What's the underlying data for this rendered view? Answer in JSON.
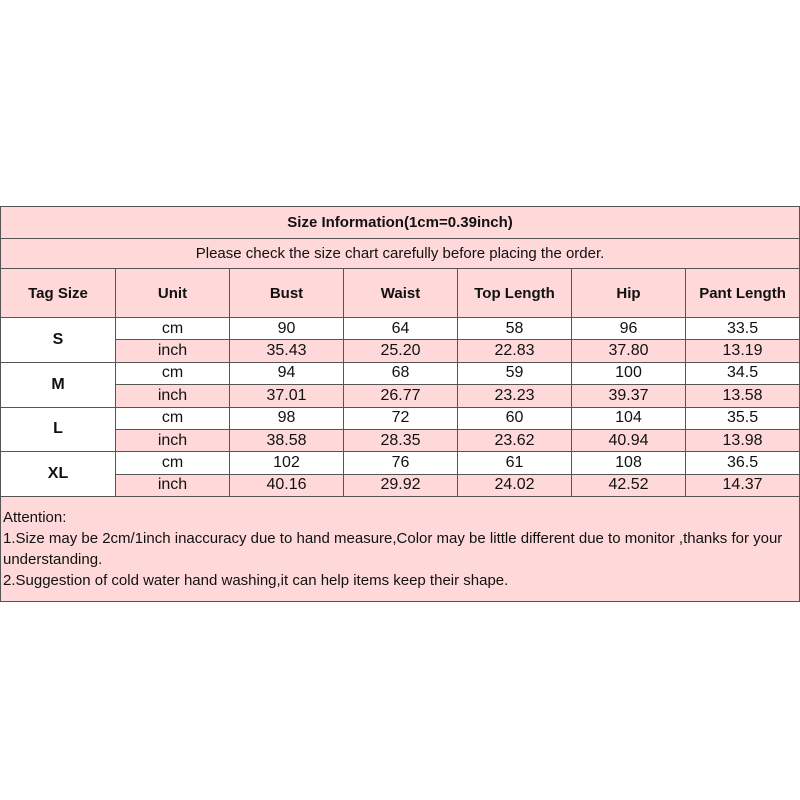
{
  "title": "Size Information(1cm=0.39inch)",
  "subtitle": "Please check the size chart carefully before placing the order.",
  "colors": {
    "pink": "#ffd9d9",
    "white": "#ffffff",
    "border": "#555555"
  },
  "headers": [
    "Tag Size",
    "Unit",
    "Bust",
    "Waist",
    "Top Length",
    "Hip",
    "Pant Length"
  ],
  "sizes": [
    {
      "tag": "S",
      "rows": [
        {
          "unit": "cm",
          "values": [
            "90",
            "64",
            "58",
            "96",
            "33.5"
          ]
        },
        {
          "unit": "inch",
          "values": [
            "35.43",
            "25.20",
            "22.83",
            "37.80",
            "13.19"
          ]
        }
      ]
    },
    {
      "tag": "M",
      "rows": [
        {
          "unit": "cm",
          "values": [
            "94",
            "68",
            "59",
            "100",
            "34.5"
          ]
        },
        {
          "unit": "inch",
          "values": [
            "37.01",
            "26.77",
            "23.23",
            "39.37",
            "13.58"
          ]
        }
      ]
    },
    {
      "tag": "L",
      "rows": [
        {
          "unit": "cm",
          "values": [
            "98",
            "72",
            "60",
            "104",
            "35.5"
          ]
        },
        {
          "unit": "inch",
          "values": [
            "38.58",
            "28.35",
            "23.62",
            "40.94",
            "13.98"
          ]
        }
      ]
    },
    {
      "tag": "XL",
      "rows": [
        {
          "unit": "cm",
          "values": [
            "102",
            "76",
            "61",
            "108",
            "36.5"
          ]
        },
        {
          "unit": "inch",
          "values": [
            "40.16",
            "29.92",
            "24.02",
            "42.52",
            "14.37"
          ]
        }
      ]
    }
  ],
  "attention": {
    "heading": "Attention:",
    "lines": [
      "1.Size may be 2cm/1inch inaccuracy due to hand measure,Color may be little different due to monitor ,thanks for your understanding.",
      "2.Suggestion of cold water hand washing,it can help items keep their shape."
    ]
  }
}
